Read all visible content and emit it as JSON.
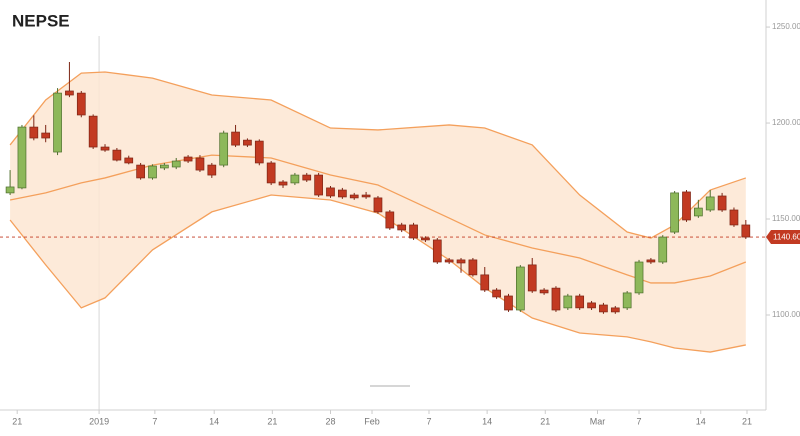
{
  "chart_data": {
    "type": "candlestick",
    "title": "NEPSE",
    "open": [
      1163.6,
      1166.2,
      1197.9,
      1194.8,
      1184.9,
      1216.7,
      1215.6,
      1203.6,
      1187.5,
      1185.9,
      1181.8,
      1178.1,
      1171.4,
      1176.6,
      1177.1,
      1182.3,
      1181.8,
      1178.1,
      1178.1,
      1195.3,
      1191.1,
      1190.6,
      1179.2,
      1169.3,
      1168.8,
      1172.9,
      1172.9,
      1166.2,
      1165.1,
      1162.5,
      1162.5,
      1161.0,
      1153.7,
      1146.9,
      1146.9,
      1140.1,
      1139.1,
      1128.7,
      1128.7,
      1128.7,
      1120.9,
      1113.0,
      1109.9,
      1102.6,
      1126.1,
      1113.0,
      1114.0,
      1103.7,
      1109.9,
      1106.3,
      1105.2,
      1103.7,
      1103.7,
      1111.5,
      1128.7,
      1127.6,
      1143.2,
      1164.1,
      1151.6,
      1154.7,
      1162.0,
      1154.7,
      1146.9
    ],
    "high": [
      1175.5,
      1199.0,
      1204.0,
      1199.0,
      1218.2,
      1231.8,
      1216.7,
      1204.5,
      1189.0,
      1187.0,
      1183.0,
      1179.2,
      1178.5,
      1179.2,
      1181.8,
      1183.3,
      1183.3,
      1179.2,
      1196.0,
      1199.0,
      1192.0,
      1191.5,
      1180.2,
      1170.3,
      1174.0,
      1174.0,
      1174.0,
      1167.2,
      1166.2,
      1163.6,
      1164.1,
      1162.0,
      1154.7,
      1148.0,
      1148.0,
      1141.0,
      1140.1,
      1129.7,
      1129.7,
      1129.7,
      1125.0,
      1114.0,
      1111.0,
      1126.0,
      1129.7,
      1114.0,
      1115.0,
      1111.0,
      1111.0,
      1107.3,
      1106.3,
      1104.7,
      1112.5,
      1128.7,
      1129.7,
      1141.6,
      1164.6,
      1165.1,
      1160.0,
      1165.1,
      1163.6,
      1156.0,
      1149.5
    ],
    "low": [
      1162.5,
      1165.5,
      1191.0,
      1190.0,
      1183.3,
      1213.5,
      1203.0,
      1186.5,
      1185.0,
      1180.0,
      1178.5,
      1170.5,
      1170.5,
      1175.5,
      1176.0,
      1179.2,
      1174.5,
      1171.4,
      1177.0,
      1187.5,
      1187.5,
      1178.0,
      1167.7,
      1166.2,
      1167.7,
      1169.3,
      1161.5,
      1161.0,
      1160.5,
      1160.0,
      1160.5,
      1152.7,
      1144.3,
      1143.2,
      1139.1,
      1138.0,
      1126.6,
      1126.6,
      1122.0,
      1120.0,
      1112.0,
      1108.4,
      1101.6,
      1101.6,
      1111.5,
      1110.5,
      1101.6,
      1102.6,
      1102.6,
      1102.6,
      1100.6,
      1100.6,
      1102.6,
      1110.5,
      1126.6,
      1126.6,
      1142.2,
      1148.5,
      1150.6,
      1153.7,
      1153.7,
      1145.9,
      1139.6
    ],
    "close": [
      1166.7,
      1197.9,
      1192.2,
      1192.2,
      1215.6,
      1214.6,
      1204.2,
      1187.5,
      1185.9,
      1180.7,
      1179.2,
      1171.4,
      1177.6,
      1178.1,
      1180.2,
      1180.2,
      1175.5,
      1172.9,
      1194.8,
      1188.5,
      1188.5,
      1179.2,
      1168.8,
      1167.7,
      1172.9,
      1170.3,
      1162.5,
      1162.0,
      1161.5,
      1161.0,
      1161.5,
      1153.7,
      1145.3,
      1144.3,
      1140.1,
      1139.1,
      1127.6,
      1127.6,
      1127.1,
      1120.9,
      1113.0,
      1109.4,
      1102.6,
      1125.0,
      1112.5,
      1111.5,
      1102.6,
      1109.9,
      1103.7,
      1103.7,
      1101.6,
      1101.6,
      1111.5,
      1127.6,
      1127.6,
      1140.6,
      1163.6,
      1149.5,
      1155.7,
      1161.5,
      1154.7,
      1146.9,
      1140.6
    ],
    "band_x": [
      0,
      3,
      6,
      8,
      12,
      17,
      22,
      27,
      31,
      37,
      40,
      44,
      48,
      52,
      54,
      56,
      59,
      62
    ],
    "upper_band": [
      1188.6,
      1212.0,
      1226.0,
      1226.6,
      1223.4,
      1214.6,
      1212.0,
      1197.4,
      1196.4,
      1199.0,
      1197.4,
      1188.6,
      1162.5,
      1143.2,
      1140.1,
      1146.9,
      1165.1,
      1171.4
    ],
    "middle_band": [
      1159.9,
      1163.6,
      1168.8,
      1171.4,
      1178.1,
      1183.3,
      1181.8,
      1172.9,
      1167.7,
      1150.5,
      1141.7,
      1134.9,
      1129.7,
      1120.9,
      1116.7,
      1116.7,
      1120.3,
      1127.6
    ],
    "lower_band": [
      1149.5,
      1126.1,
      1103.7,
      1108.9,
      1133.9,
      1153.7,
      1162.5,
      1159.9,
      1153.1,
      1128.7,
      1114.1,
      1098.4,
      1090.6,
      1088.6,
      1086.0,
      1082.8,
      1080.7,
      1084.4
    ],
    "up_color": "#8db85a",
    "down_color": "#c23a22",
    "band_color": "#f4a05c",
    "band_fill": "#fde6d2",
    "last_price": {
      "value": 1140.6,
      "label": "1140.60"
    },
    "xlim": [
      -0.85,
      63.7
    ],
    "ylim": [
      1050.5,
      1264.1
    ],
    "yticks": [
      {
        "value": 1100,
        "label": "1100.00"
      },
      {
        "value": 1150,
        "label": "1150.00"
      },
      {
        "value": 1200,
        "label": "1200.00"
      },
      {
        "value": 1250,
        "label": "1250.00"
      }
    ],
    "xticks": [
      {
        "value": 0.6,
        "label": "21"
      },
      {
        "value": 7.5,
        "label": "2019"
      },
      {
        "value": 12.2,
        "label": "7"
      },
      {
        "value": 17.2,
        "label": "14"
      },
      {
        "value": 22.1,
        "label": "21"
      },
      {
        "value": 27,
        "label": "28"
      },
      {
        "value": 30.5,
        "label": "Feb"
      },
      {
        "value": 35.3,
        "label": "7"
      },
      {
        "value": 40.2,
        "label": "14"
      },
      {
        "value": 45.1,
        "label": "21"
      },
      {
        "value": 49.5,
        "label": "Mar"
      },
      {
        "value": 53,
        "label": "7"
      },
      {
        "value": 58.2,
        "label": "14"
      },
      {
        "value": 62.1,
        "label": "21"
      }
    ],
    "year_divider": 7.5
  }
}
